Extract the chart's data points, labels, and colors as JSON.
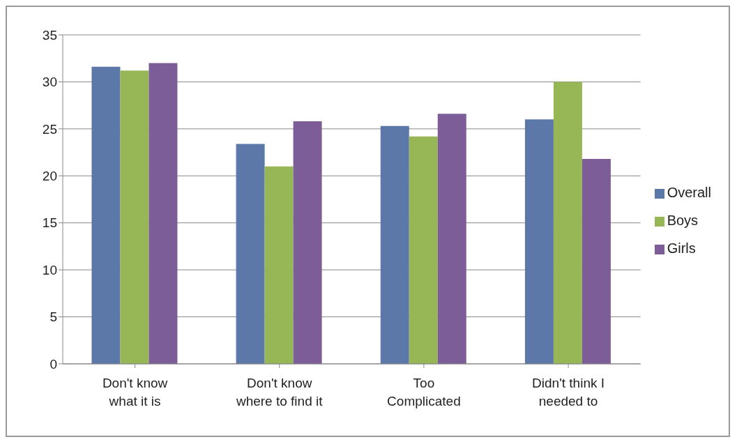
{
  "chart_data": {
    "type": "bar",
    "categories": [
      "Don't know\nwhat it is",
      "Don't know\nwhere to find it",
      "Too\nComplicated",
      "Didn't think I\nneeded to"
    ],
    "series": [
      {
        "name": "Overall",
        "color": "#5b78a8",
        "values": [
          31.6,
          23.4,
          25.3,
          26.0
        ]
      },
      {
        "name": "Boys",
        "color": "#97b656",
        "values": [
          31.2,
          21.0,
          24.2,
          30.0
        ]
      },
      {
        "name": "Girls",
        "color": "#7d5d98",
        "values": [
          32.0,
          25.8,
          26.6,
          21.8
        ]
      }
    ],
    "ylim": [
      0,
      35
    ],
    "yticks": [
      0,
      5,
      10,
      15,
      20,
      25,
      30,
      35
    ],
    "grid": "y",
    "legend": "right"
  }
}
